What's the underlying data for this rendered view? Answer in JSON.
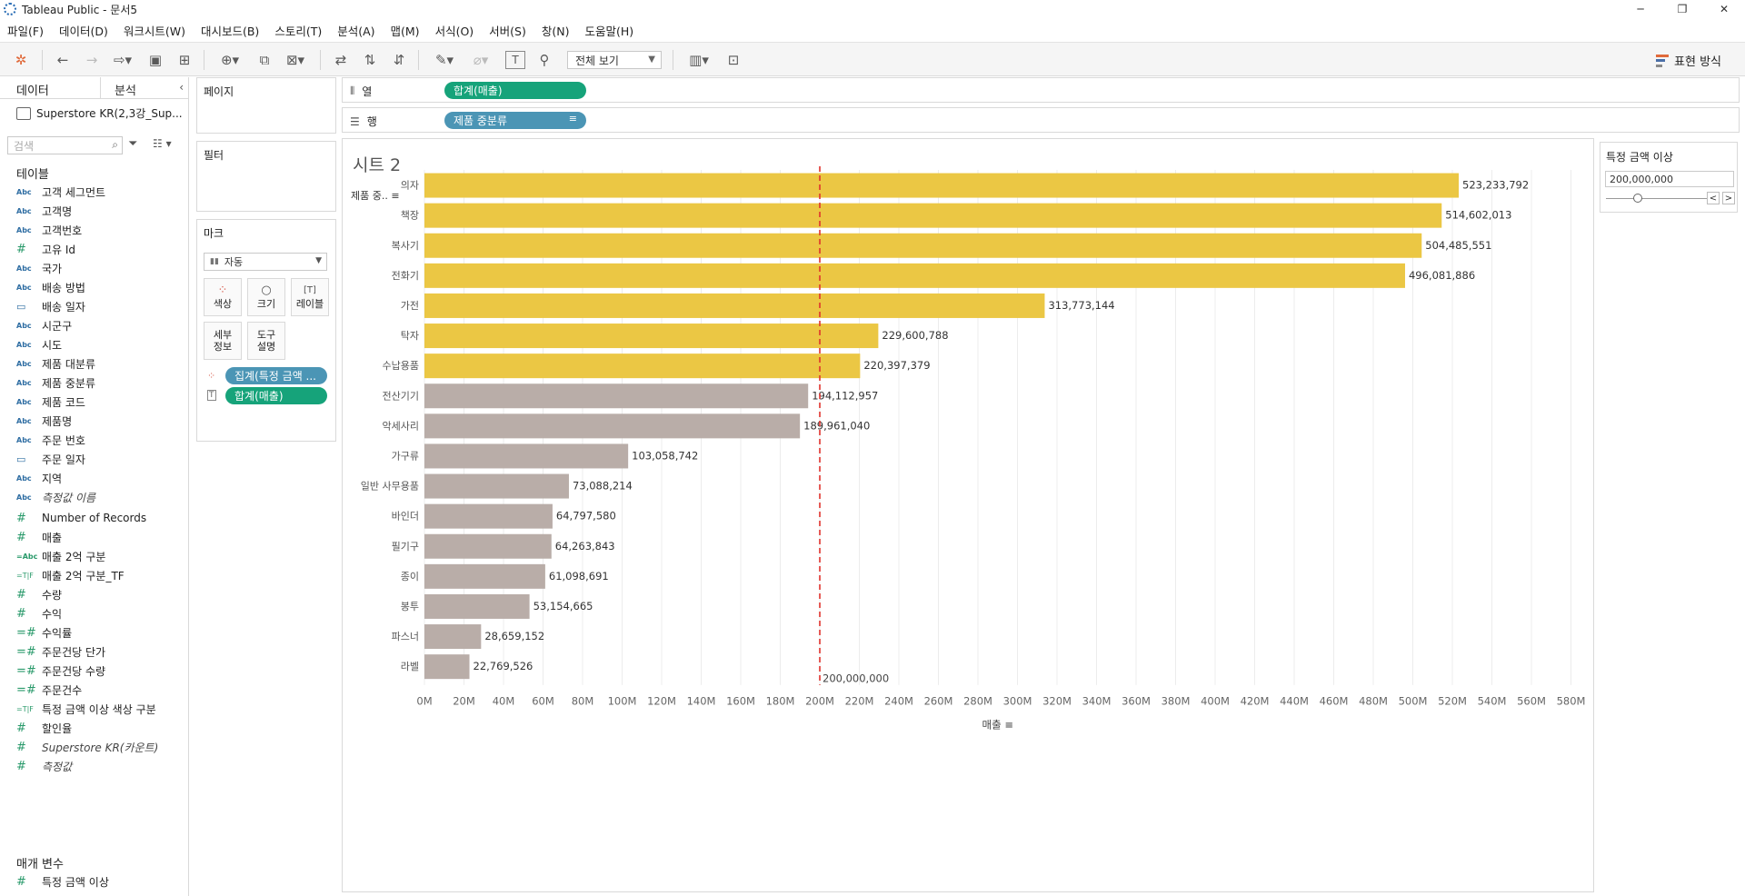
{
  "window": {
    "title": "Tableau Public - 문서5",
    "controls": [
      "─",
      "❐",
      "✕"
    ]
  },
  "menu": [
    "파일(F)",
    "데이터(D)",
    "워크시트(W)",
    "대시보드(B)",
    "스토리(T)",
    "분석(A)",
    "맵(M)",
    "서식(O)",
    "서버(S)",
    "창(N)",
    "도움말(H)"
  ],
  "toolbar": {
    "fit_select": "전체 보기",
    "show_me_label": "표현 방식"
  },
  "data_pane": {
    "tab_data": "데이터",
    "tab_analysis": "분석",
    "datasource": "Superstore KR(2,3강_Sup...",
    "search_placeholder": "검색",
    "tables_heading": "테이블",
    "dimensions": [
      {
        "type": "Abc",
        "name": "고객 세그먼트"
      },
      {
        "type": "Abc",
        "name": "고객명"
      },
      {
        "type": "Abc",
        "name": "고객번호"
      },
      {
        "type": "#",
        "name": "고유 Id"
      },
      {
        "type": "Abc",
        "name": "국가"
      },
      {
        "type": "Abc",
        "name": "배송 방법"
      },
      {
        "type": "date",
        "name": "배송 일자"
      },
      {
        "type": "Abc",
        "name": "시군구"
      },
      {
        "type": "Abc",
        "name": "시도"
      },
      {
        "type": "Abc",
        "name": "제품 대분류"
      },
      {
        "type": "Abc",
        "name": "제품 중분류"
      },
      {
        "type": "Abc",
        "name": "제품 코드"
      },
      {
        "type": "Abc",
        "name": "제품명"
      },
      {
        "type": "Abc",
        "name": "주문 번호"
      },
      {
        "type": "date",
        "name": "주문 일자"
      },
      {
        "type": "Abc",
        "name": "지역"
      },
      {
        "type": "Abc",
        "name": "측정값 이름",
        "italic": true
      }
    ],
    "measures": [
      {
        "type": "#",
        "name": "Number of Records"
      },
      {
        "type": "#",
        "name": "매출"
      },
      {
        "type": "=Abc",
        "name": "매출 2억 구분"
      },
      {
        "type": "=T|F",
        "name": "매출 2억 구분_TF"
      },
      {
        "type": "#",
        "name": "수량"
      },
      {
        "type": "#",
        "name": "수익"
      },
      {
        "type": "=#",
        "name": "수익률"
      },
      {
        "type": "=#",
        "name": "주문건당 단가"
      },
      {
        "type": "=#",
        "name": "주문건당 수량"
      },
      {
        "type": "=#",
        "name": "주문건수"
      },
      {
        "type": "=T|F",
        "name": "특정 금액 이상 색상 구분"
      },
      {
        "type": "#",
        "name": "할인율"
      },
      {
        "type": "#",
        "name": "Superstore KR(카운트)",
        "italic": true
      },
      {
        "type": "#",
        "name": "측정값",
        "italic": true
      }
    ],
    "params_heading": "매개 변수",
    "params": [
      {
        "type": "#",
        "name": "특정 금액 이상"
      }
    ]
  },
  "cards": {
    "pages": "페이지",
    "filters": "필터",
    "marks": "마크",
    "marks_type": "자동",
    "mark_buttons": {
      "color": "색상",
      "size": "크기",
      "label": "레이블",
      "detail_1": "세부",
      "detail_2": "정보",
      "tooltip_1": "도구",
      "tooltip_2": "설명"
    },
    "mark_pills": {
      "color_pill": "집계(특정 금액 ...",
      "label_pill": "합계(매출)"
    }
  },
  "shelves": {
    "columns_label": "열",
    "columns_pill": "합계(매출)",
    "rows_label": "행",
    "rows_pill": "제품 중분류"
  },
  "sheet": {
    "title": "시트 2",
    "row_header": "제품 중.."
  },
  "parameter_card": {
    "title": "특정 금액 이상",
    "value": "200,000,000",
    "prev": "<",
    "next": ">"
  },
  "colors": {
    "above": "#EBC744",
    "below": "#B9ADA8",
    "refline": "#E0322C",
    "pill_green": "#16A37A",
    "pill_blue": "#4B95B5"
  },
  "chart_data": {
    "type": "bar",
    "orientation": "horizontal",
    "categories": [
      "의자",
      "책장",
      "복사기",
      "전화기",
      "가전",
      "탁자",
      "수납용품",
      "전산기기",
      "악세사리",
      "가구류",
      "일반 사무용품",
      "바인더",
      "필기구",
      "종이",
      "봉투",
      "파스너",
      "라벨"
    ],
    "values": [
      523233792,
      514602013,
      504485551,
      496081886,
      313773144,
      229600788,
      220397379,
      194112957,
      189961040,
      103058742,
      73088214,
      64797580,
      64263843,
      61098691,
      53154665,
      28659152,
      22769526
    ],
    "value_labels": [
      "523,233,792",
      "514,602,013",
      "504,485,551",
      "496,081,886",
      "313,773,144",
      "229,600,788",
      "220,397,379",
      "194,112,957",
      "189,961,040",
      "103,058,742",
      "73,088,214",
      "64,797,580",
      "64,263,843",
      "61,098,691",
      "53,154,665",
      "28,659,152",
      "22,769,526"
    ],
    "threshold": 200000000,
    "threshold_label": "200,000,000",
    "xlabel": "매출",
    "xlim": [
      0,
      590000000
    ],
    "xticks": [
      0,
      20000000,
      40000000,
      60000000,
      80000000,
      100000000,
      120000000,
      140000000,
      160000000,
      180000000,
      200000000,
      220000000,
      240000000,
      260000000,
      280000000,
      300000000,
      320000000,
      340000000,
      360000000,
      380000000,
      400000000,
      420000000,
      440000000,
      460000000,
      480000000,
      500000000,
      520000000,
      540000000,
      560000000,
      580000000
    ],
    "xtick_labels": [
      "0M",
      "20M",
      "40M",
      "60M",
      "80M",
      "100M",
      "120M",
      "140M",
      "160M",
      "180M",
      "200M",
      "220M",
      "240M",
      "260M",
      "280M",
      "300M",
      "320M",
      "340M",
      "360M",
      "380M",
      "400M",
      "420M",
      "440M",
      "460M",
      "480M",
      "500M",
      "520M",
      "540M",
      "560M",
      "580M"
    ],
    "vertical_grid": true
  }
}
